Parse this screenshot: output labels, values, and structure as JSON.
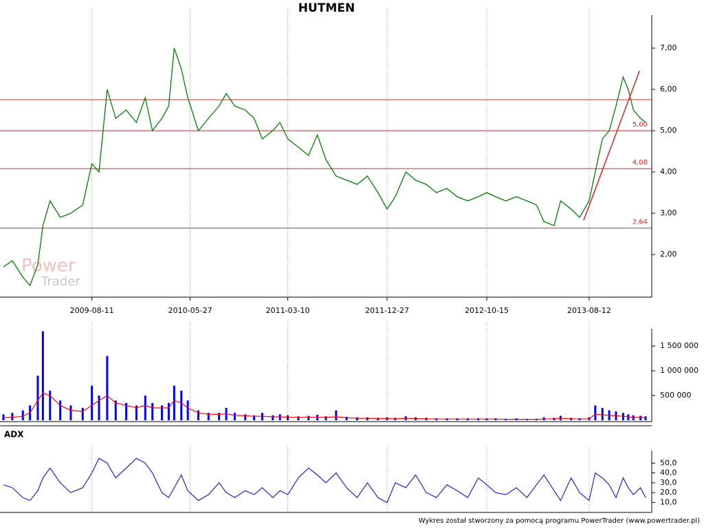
{
  "chart_data": [
    {
      "type": "line",
      "title": "HUTMEN",
      "color": "#008000",
      "x": [
        "2008-11-24",
        "2008-12-20",
        "2009-01-20",
        "2009-02-10",
        "2009-03-05",
        "2009-03-20",
        "2009-04-10",
        "2009-05-10",
        "2009-06-10",
        "2009-07-15",
        "2009-08-11",
        "2009-09-01",
        "2009-09-25",
        "2009-10-20",
        "2009-11-20",
        "2009-12-20",
        "2010-01-15",
        "2010-02-05",
        "2010-03-05",
        "2010-03-25",
        "2010-04-10",
        "2010-05-01",
        "2010-05-20",
        "2010-06-20",
        "2010-07-20",
        "2010-08-20",
        "2010-09-10",
        "2010-10-05",
        "2010-11-05",
        "2010-12-01",
        "2010-12-25",
        "2011-01-25",
        "2011-02-15",
        "2011-03-10",
        "2011-04-10",
        "2011-05-10",
        "2011-06-05",
        "2011-06-30",
        "2011-07-30",
        "2011-08-30",
        "2011-09-30",
        "2011-10-30",
        "2011-11-30",
        "2011-12-27",
        "2012-01-20",
        "2012-02-20",
        "2012-03-20",
        "2012-04-20",
        "2012-05-20",
        "2012-06-20",
        "2012-07-20",
        "2012-08-20",
        "2012-09-20",
        "2012-10-15",
        "2012-11-10",
        "2012-12-10",
        "2013-01-10",
        "2013-02-10",
        "2013-03-10",
        "2013-04-01",
        "2013-05-01",
        "2013-05-20",
        "2013-06-20",
        "2013-07-15",
        "2013-08-12",
        "2013-08-30",
        "2013-09-20",
        "2013-10-10",
        "2013-10-30",
        "2013-11-20",
        "2013-12-05",
        "2013-12-20",
        "2014-01-10",
        "2014-01-25"
      ],
      "values": [
        1.7,
        1.85,
        1.45,
        1.25,
        1.75,
        2.7,
        3.3,
        2.9,
        3.0,
        3.2,
        4.2,
        4.0,
        6.0,
        5.3,
        5.5,
        5.2,
        5.8,
        5.0,
        5.3,
        5.6,
        7.0,
        6.5,
        5.8,
        5.0,
        5.3,
        5.6,
        5.9,
        5.6,
        5.5,
        5.3,
        4.8,
        5.0,
        5.2,
        4.8,
        4.6,
        4.4,
        4.9,
        4.3,
        3.9,
        3.8,
        3.7,
        3.9,
        3.5,
        3.1,
        3.4,
        4.0,
        3.8,
        3.7,
        3.5,
        3.6,
        3.4,
        3.3,
        3.4,
        3.5,
        3.4,
        3.3,
        3.4,
        3.3,
        3.2,
        2.8,
        2.7,
        3.3,
        3.1,
        2.9,
        3.3,
        4.0,
        4.8,
        5.0,
        5.6,
        6.3,
        6.0,
        5.5,
        5.3,
        5.2
      ],
      "xlim": [
        "2008-11-24",
        "2014-02-06"
      ],
      "xticks": [
        "2009-08-11",
        "2010-05-27",
        "2011-03-10",
        "2011-12-27",
        "2012-10-15",
        "2013-08-12"
      ],
      "ylim": [
        1.0,
        7.8
      ],
      "yticks": [
        {
          "value": 2,
          "label": "2,00"
        },
        {
          "value": 3,
          "label": "3,00"
        },
        {
          "value": 4,
          "label": "4,00"
        },
        {
          "value": 5,
          "label": "5,00"
        },
        {
          "value": 6,
          "label": "6,00"
        },
        {
          "value": 7,
          "label": "7,00"
        }
      ],
      "grid": "x",
      "levels": [
        {
          "value": 5.75
        },
        {
          "value": 5.0,
          "label": "5,00"
        },
        {
          "value": 4.08,
          "label": "4,08"
        },
        {
          "value": 2.64,
          "label": "2,64"
        }
      ],
      "level_color": "#e02020",
      "trend_line": {
        "x": [
          "2013-07-27",
          "2014-01-07"
        ],
        "values": [
          2.83,
          6.45
        ],
        "color": "#e02020"
      },
      "watermark": [
        "Power",
        "Trader"
      ]
    },
    {
      "type": "bar",
      "xlim": [
        "2008-11-24",
        "2014-02-06"
      ],
      "ylim": [
        0,
        1850000
      ],
      "yticks": [
        {
          "value": 500000,
          "label": "500 000"
        },
        {
          "value": 1000000,
          "label": "1 000 000"
        },
        {
          "value": 1500000,
          "label": "1 500 000"
        }
      ],
      "series": [
        {
          "type": "bar",
          "color": "#0000ff",
          "values": [
            120000,
            150000,
            200000,
            300000,
            900000,
            1800000,
            600000,
            400000,
            300000,
            250000,
            700000,
            500000,
            1300000,
            400000,
            350000,
            300000,
            500000,
            350000,
            300000,
            350000,
            700000,
            600000,
            400000,
            200000,
            150000,
            150000,
            250000,
            150000,
            120000,
            100000,
            150000,
            100000,
            120000,
            100000,
            80000,
            90000,
            110000,
            80000,
            200000,
            70000,
            60000,
            60000,
            50000,
            60000,
            50000,
            80000,
            60000,
            50000,
            40000,
            40000,
            40000,
            40000,
            40000,
            40000,
            40000,
            30000,
            40000,
            30000,
            30000,
            60000,
            50000,
            90000,
            50000,
            40000,
            60000,
            300000,
            250000,
            200000,
            180000,
            150000,
            120000,
            100000,
            90000,
            80000
          ]
        },
        {
          "type": "line",
          "color": "#ff0000",
          "values": [
            50000,
            60000,
            80000,
            150000,
            400000,
            550000,
            500000,
            300000,
            200000,
            180000,
            300000,
            400000,
            500000,
            350000,
            300000,
            250000,
            300000,
            250000,
            250000,
            250000,
            400000,
            350000,
            250000,
            150000,
            120000,
            120000,
            130000,
            100000,
            90000,
            80000,
            80000,
            70000,
            70000,
            60000,
            60000,
            60000,
            60000,
            60000,
            70000,
            50000,
            40000,
            40000,
            35000,
            35000,
            30000,
            40000,
            35000,
            30000,
            25000,
            25000,
            25000,
            25000,
            25000,
            25000,
            25000,
            20000,
            20000,
            20000,
            20000,
            25000,
            30000,
            40000,
            30000,
            25000,
            30000,
            120000,
            110000,
            100000,
            90000,
            80000,
            70000,
            60000,
            55000,
            50000
          ]
        }
      ]
    },
    {
      "type": "line",
      "title": "ADX",
      "color": "#2020e0",
      "xlim": [
        "2008-11-24",
        "2014-02-06"
      ],
      "ylim": [
        2,
        60
      ],
      "yticks": [
        {
          "value": 10,
          "label": "10,0"
        },
        {
          "value": 20,
          "label": "20,0"
        },
        {
          "value": 30,
          "label": "30,0"
        },
        {
          "value": 40,
          "label": "40,0"
        },
        {
          "value": 50,
          "label": "50,0"
        }
      ],
      "values": [
        28,
        25,
        15,
        12,
        22,
        35,
        45,
        30,
        20,
        25,
        40,
        55,
        50,
        35,
        45,
        55,
        50,
        40,
        20,
        15,
        25,
        38,
        22,
        12,
        18,
        30,
        20,
        15,
        22,
        18,
        25,
        15,
        22,
        18,
        35,
        45,
        38,
        30,
        40,
        25,
        15,
        30,
        15,
        10,
        30,
        25,
        38,
        20,
        15,
        28,
        22,
        15,
        35,
        28,
        20,
        18,
        25,
        15,
        28,
        38,
        22,
        12,
        35,
        20,
        12,
        40,
        35,
        28,
        15,
        35,
        25,
        18,
        25,
        15
      ]
    }
  ],
  "footer": "Wykres został stworzony za pomocą programu PowerTrader (www.powertrader.pl)"
}
